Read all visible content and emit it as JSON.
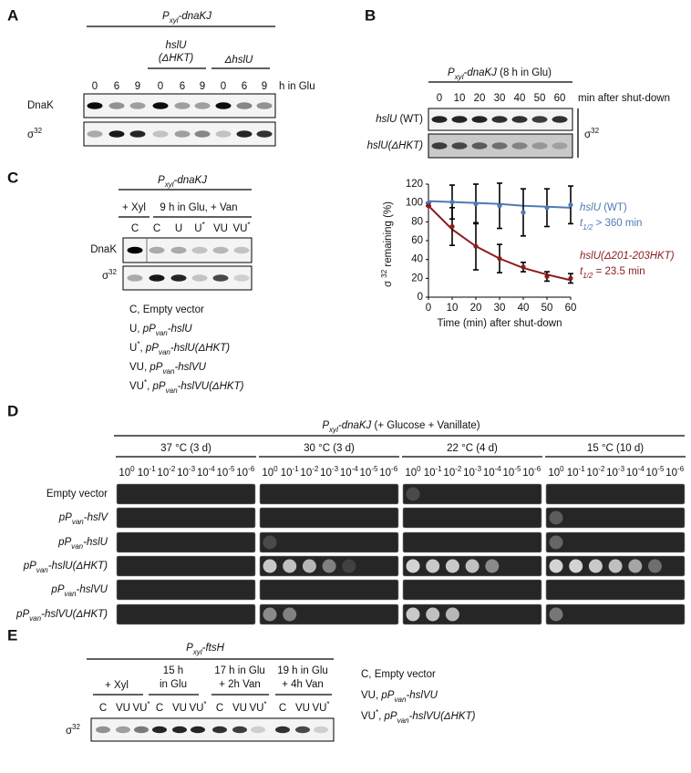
{
  "panels": {
    "A": {
      "letter": "A",
      "construct": [
        {
          "t": "P",
          "i": true
        },
        {
          "t": "xyl",
          "sub": true,
          "i": true
        },
        {
          "t": "-dnaKJ",
          "i": true
        }
      ],
      "groups": [
        {
          "lines": [
            [
              {
                "t": "hslU",
                "i": true
              }
            ],
            [
              {
                "t": "(ΔHKT)",
                "i": true
              }
            ]
          ]
        },
        {
          "lines": [
            [
              {
                "t": "ΔhslU",
                "i": true
              }
            ]
          ]
        }
      ],
      "lanes": [
        "0",
        "6",
        "9",
        "0",
        "6",
        "9",
        "0",
        "6",
        "9"
      ],
      "lane_unit": "h in Glu",
      "rows": [
        [
          {
            "t": "DnaK"
          }
        ],
        [
          {
            "t": "σ"
          },
          {
            "t": "32",
            "sup": true
          }
        ]
      ]
    },
    "B": {
      "letter": "B",
      "construct": [
        {
          "t": "P",
          "i": true
        },
        {
          "t": "xyl",
          "sub": true,
          "i": true
        },
        {
          "t": "-dnaKJ",
          "i": true
        },
        {
          "t": " (8 h in Glu)"
        }
      ],
      "lanes": [
        "0",
        "10",
        "20",
        "30",
        "40",
        "50",
        "60"
      ],
      "lane_unit": "min after shut-down",
      "rows": [
        [
          {
            "t": "hslU",
            "i": true
          },
          {
            "t": " (WT)"
          }
        ],
        [
          {
            "t": "hslU(ΔHKT)",
            "i": true
          }
        ]
      ],
      "bracket_label": [
        {
          "t": "σ"
        },
        {
          "t": "32",
          "sup": true
        }
      ]
    },
    "C": {
      "letter": "C",
      "construct": [
        {
          "t": "P",
          "i": true
        },
        {
          "t": "xyl",
          "sub": true,
          "i": true
        },
        {
          "t": "-dnaKJ",
          "i": true
        }
      ],
      "groups": [
        "+ Xyl",
        "9 h in Glu, + Van"
      ],
      "lanes": [
        [
          {
            "t": "C"
          }
        ],
        [
          {
            "t": "C"
          }
        ],
        [
          {
            "t": "U"
          }
        ],
        [
          {
            "t": "U"
          },
          {
            "t": "*",
            "sup": true
          }
        ],
        [
          {
            "t": "VU"
          }
        ],
        [
          {
            "t": "VU"
          },
          {
            "t": "*",
            "sup": true
          }
        ]
      ],
      "rows": [
        [
          {
            "t": "DnaK"
          }
        ],
        [
          {
            "t": "σ"
          },
          {
            "t": "32",
            "sup": true
          }
        ]
      ],
      "legend": [
        [
          {
            "t": "C, Empty vector"
          }
        ],
        [
          {
            "t": "U, "
          },
          {
            "t": "pP",
            "i": true
          },
          {
            "t": "van",
            "sub": true,
            "i": true
          },
          {
            "t": "-hslU",
            "i": true
          }
        ],
        [
          {
            "t": "U"
          },
          {
            "t": "*",
            "sup": true
          },
          {
            "t": ", "
          },
          {
            "t": "pP",
            "i": true
          },
          {
            "t": "van",
            "sub": true,
            "i": true
          },
          {
            "t": "-hslU(ΔHKT)",
            "i": true
          }
        ],
        [
          {
            "t": "VU, "
          },
          {
            "t": "pP",
            "i": true
          },
          {
            "t": "van",
            "sub": true,
            "i": true
          },
          {
            "t": "-hslVU",
            "i": true
          }
        ],
        [
          {
            "t": "VU"
          },
          {
            "t": "*",
            "sup": true
          },
          {
            "t": ", "
          },
          {
            "t": "pP",
            "i": true
          },
          {
            "t": "van",
            "sub": true,
            "i": true
          },
          {
            "t": "-hslVU(ΔHKT)",
            "i": true
          }
        ]
      ]
    },
    "D": {
      "letter": "D",
      "header": [
        {
          "t": "P",
          "i": true
        },
        {
          "t": "xyl",
          "sub": true,
          "i": true
        },
        {
          "t": "-dnaKJ",
          "i": true
        },
        {
          "t": " (+ Glucose + Vanillate)"
        }
      ],
      "conditions": [
        "37 °C (3 d)",
        "30 °C (3 d)",
        "22 °C (4 d)",
        "15 °C (10 d)"
      ],
      "dilutions": [
        [
          {
            "t": "10"
          },
          {
            "t": "0",
            "sup": true
          }
        ],
        [
          {
            "t": "10"
          },
          {
            "t": "-1",
            "sup": true
          }
        ],
        [
          {
            "t": "10"
          },
          {
            "t": "-2",
            "sup": true
          }
        ],
        [
          {
            "t": "10"
          },
          {
            "t": "-3",
            "sup": true
          }
        ],
        [
          {
            "t": "10"
          },
          {
            "t": "-4",
            "sup": true
          }
        ],
        [
          {
            "t": "10"
          },
          {
            "t": "-5",
            "sup": true
          }
        ],
        [
          {
            "t": "10"
          },
          {
            "t": "-6",
            "sup": true
          }
        ]
      ],
      "strains": [
        [
          {
            "t": "Empty vector"
          }
        ],
        [
          {
            "t": "pP",
            "i": true
          },
          {
            "t": "van",
            "sub": true,
            "i": true
          },
          {
            "t": "-hslV",
            "i": true
          }
        ],
        [
          {
            "t": "pP",
            "i": true
          },
          {
            "t": "van",
            "sub": true,
            "i": true
          },
          {
            "t": "-hslU",
            "i": true
          }
        ],
        [
          {
            "t": "pP",
            "i": true
          },
          {
            "t": "van",
            "sub": true,
            "i": true
          },
          {
            "t": "-hslU(ΔHKT)",
            "i": true
          }
        ],
        [
          {
            "t": "pP",
            "i": true
          },
          {
            "t": "van",
            "sub": true,
            "i": true
          },
          {
            "t": "-hslVU",
            "i": true
          }
        ],
        [
          {
            "t": "pP",
            "i": true
          },
          {
            "t": "van",
            "sub": true,
            "i": true
          },
          {
            "t": "-hslVU(ΔHKT)",
            "i": true
          }
        ]
      ]
    },
    "E": {
      "letter": "E",
      "construct": [
        {
          "t": "P",
          "i": true
        },
        {
          "t": "xyl",
          "sub": true,
          "i": true
        },
        {
          "t": "-ftsH",
          "i": true
        }
      ],
      "groups": [
        [
          "+ Xyl"
        ],
        [
          "15 h",
          "in Glu"
        ],
        [
          "17 h in Glu",
          "+ 2h Van"
        ],
        [
          "19 h in Glu",
          "+ 4h Van"
        ]
      ],
      "lanes": [
        [
          {
            "t": "C"
          }
        ],
        [
          {
            "t": "VU"
          }
        ],
        [
          {
            "t": "VU"
          },
          {
            "t": "*",
            "sup": true
          }
        ]
      ],
      "row": [
        {
          "t": "σ"
        },
        {
          "t": "32",
          "sup": true
        }
      ],
      "legend": [
        [
          {
            "t": "C, Empty vector"
          }
        ],
        [
          {
            "t": "VU, "
          },
          {
            "t": "pP",
            "i": true
          },
          {
            "t": "van",
            "sub": true,
            "i": true
          },
          {
            "t": "-hslVU",
            "i": true
          }
        ],
        [
          {
            "t": "VU"
          },
          {
            "t": "*",
            "sup": true
          },
          {
            "t": ", "
          },
          {
            "t": "pP",
            "i": true
          },
          {
            "t": "van",
            "sub": true,
            "i": true
          },
          {
            "t": "-hslVU(ΔHKT)",
            "i": true
          }
        ]
      ]
    }
  },
  "chart_data": {
    "type": "line",
    "x": [
      0,
      10,
      20,
      30,
      40,
      50,
      60
    ],
    "xlim": [
      0,
      60
    ],
    "xticks": [
      0,
      10,
      20,
      30,
      40,
      50,
      60
    ],
    "ylim": [
      0,
      120
    ],
    "yticks": [
      0,
      20,
      40,
      60,
      80,
      100,
      120
    ],
    "xlabel": "Time (min) after shut-down",
    "ylabel": [
      {
        "t": "σ "
      },
      {
        "t": "32",
        "sup": true
      },
      {
        "t": " remaining (%)"
      }
    ],
    "series": [
      {
        "name": [
          {
            "t": "hslU",
            "i": true
          },
          {
            "t": " (WT)"
          }
        ],
        "annotation": [
          {
            "t": "t",
            "i": true
          },
          {
            "t": "1/2",
            "sub": true,
            "i": true
          },
          {
            "t": " > 360 min"
          }
        ],
        "color": "#4f79b5",
        "values": [
          100,
          101,
          99,
          97,
          90,
          95,
          98
        ],
        "errors": [
          0,
          18,
          21,
          24,
          25,
          20,
          20
        ],
        "fit": [
          102,
          101,
          100,
          99,
          97,
          96,
          95
        ]
      },
      {
        "name": [
          {
            "t": "hslU(Δ201-203HKT)",
            "i": true
          }
        ],
        "annotation": [
          {
            "t": "t",
            "i": true
          },
          {
            "t": "1/2",
            "sub": true,
            "i": true
          },
          {
            "t": " = 23.5 min"
          }
        ],
        "color": "#8b1c1c",
        "values": [
          97,
          75,
          54,
          41,
          32,
          22,
          20
        ],
        "errors": [
          0,
          20,
          25,
          15,
          5,
          5,
          5
        ],
        "fit": [
          97,
          72,
          54,
          41,
          31,
          24,
          18
        ]
      }
    ]
  }
}
